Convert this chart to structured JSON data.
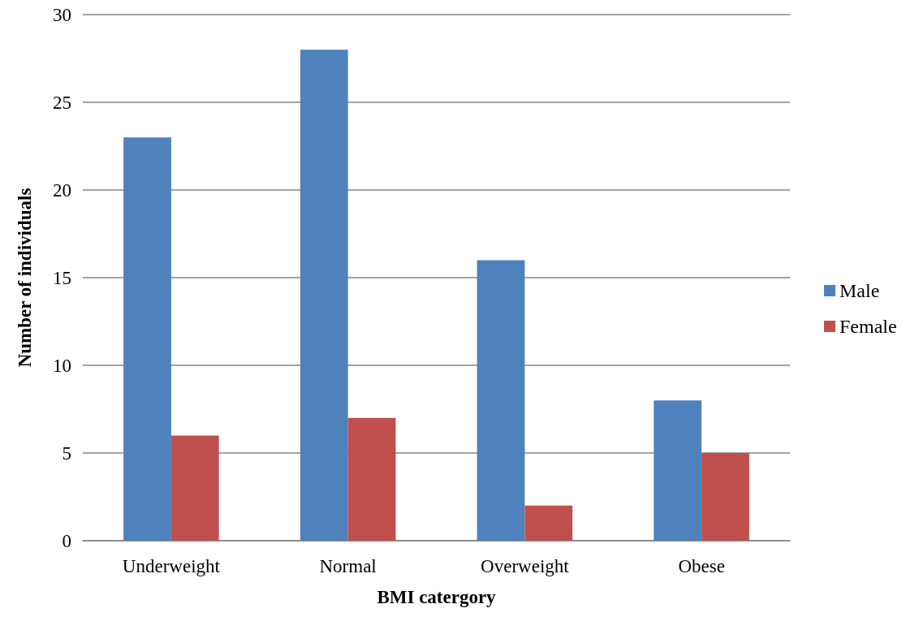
{
  "chart_data": {
    "type": "bar",
    "xlabel": "BMI catergory",
    "ylabel": "Number of individuals",
    "categories": [
      "Underweight",
      "Normal",
      "Overweight",
      "Obese"
    ],
    "series": [
      {
        "name": "Male",
        "color": "#4f81bd",
        "values": [
          23,
          28,
          16,
          8
        ]
      },
      {
        "name": "Female",
        "color": "#c0504d",
        "values": [
          6,
          7,
          2,
          5
        ]
      }
    ],
    "ylim": [
      0,
      30
    ],
    "yticks": [
      0,
      5,
      10,
      15,
      20,
      25,
      30
    ],
    "grid": "y",
    "legend": "right"
  }
}
